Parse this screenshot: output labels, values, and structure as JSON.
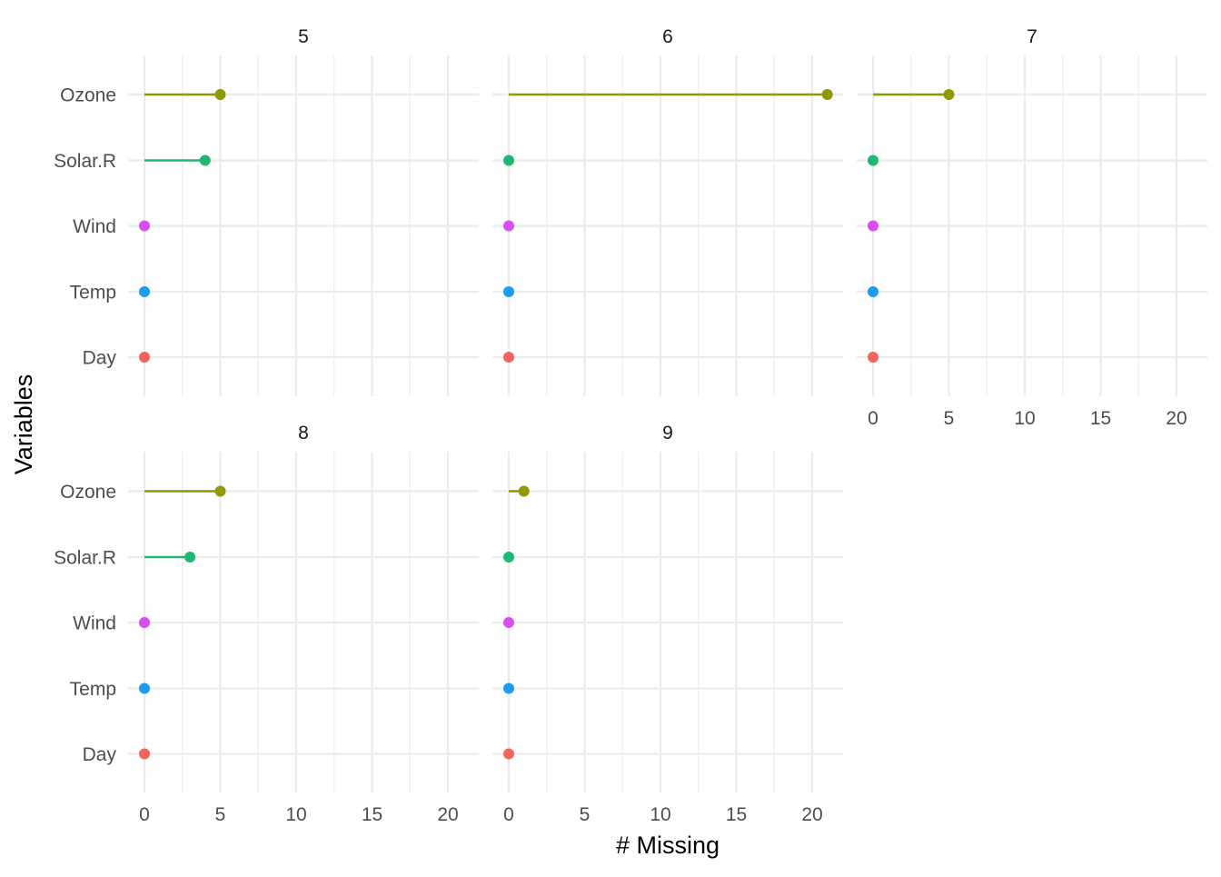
{
  "chart_data": {
    "type": "lollipop",
    "xlabel": "# Missing",
    "ylabel": "Variables",
    "xlim": [
      0,
      22
    ],
    "x_ticks": [
      0,
      5,
      10,
      15,
      20
    ],
    "x_tick_labels": [
      "0",
      "5",
      "10",
      "15",
      "20"
    ],
    "grid": true,
    "variables": [
      "Ozone",
      "Solar.R",
      "Wind",
      "Temp",
      "Day"
    ],
    "colors": {
      "Ozone": "#8E9A00",
      "Solar.R": "#1EB874",
      "Wind": "#D84EF2",
      "Temp": "#1A9DEC",
      "Day": "#F2655E"
    },
    "panels": [
      {
        "label": "5",
        "values": {
          "Ozone": 5,
          "Solar.R": 4,
          "Wind": 0,
          "Temp": 0,
          "Day": 0
        }
      },
      {
        "label": "6",
        "values": {
          "Ozone": 21,
          "Solar.R": 0,
          "Wind": 0,
          "Temp": 0,
          "Day": 0
        }
      },
      {
        "label": "7",
        "values": {
          "Ozone": 5,
          "Solar.R": 0,
          "Wind": 0,
          "Temp": 0,
          "Day": 0
        }
      },
      {
        "label": "8",
        "values": {
          "Ozone": 5,
          "Solar.R": 3,
          "Wind": 0,
          "Temp": 0,
          "Day": 0
        }
      },
      {
        "label": "9",
        "values": {
          "Ozone": 1,
          "Solar.R": 0,
          "Wind": 0,
          "Temp": 0,
          "Day": 0
        }
      }
    ]
  }
}
